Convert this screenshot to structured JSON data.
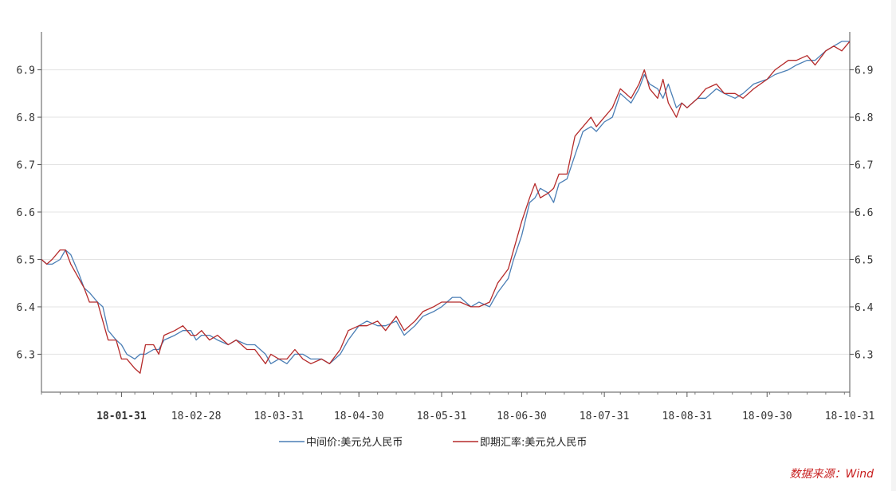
{
  "chart_data": {
    "type": "line",
    "x_tick_labels": [
      "18-01-31",
      "18-02-28",
      "18-03-31",
      "18-04-30",
      "18-05-31",
      "18-06-30",
      "18-07-31",
      "18-08-31",
      "18-09-30",
      "18-10-31"
    ],
    "x_range": [
      "2018-01-01",
      "2018-10-31"
    ],
    "y_tick_labels": [
      "6.3",
      "6.4",
      "6.5",
      "6.6",
      "6.7",
      "6.8",
      "6.9"
    ],
    "ylim": [
      6.22,
      6.98
    ],
    "grid": "horizontal",
    "legend_position": "bottom",
    "series": [
      {
        "name": "中间价:美元兑人民币",
        "color": "#4a7eb5",
        "points": [
          [
            "2018-01-01",
            6.5
          ],
          [
            "2018-01-03",
            6.49
          ],
          [
            "2018-01-05",
            6.49
          ],
          [
            "2018-01-08",
            6.5
          ],
          [
            "2018-01-10",
            6.52
          ],
          [
            "2018-01-12",
            6.51
          ],
          [
            "2018-01-15",
            6.47
          ],
          [
            "2018-01-17",
            6.44
          ],
          [
            "2018-01-19",
            6.43
          ],
          [
            "2018-01-22",
            6.41
          ],
          [
            "2018-01-24",
            6.4
          ],
          [
            "2018-01-26",
            6.35
          ],
          [
            "2018-01-29",
            6.33
          ],
          [
            "2018-01-31",
            6.32
          ],
          [
            "2018-02-02",
            6.3
          ],
          [
            "2018-02-05",
            6.29
          ],
          [
            "2018-02-07",
            6.3
          ],
          [
            "2018-02-09",
            6.3
          ],
          [
            "2018-02-12",
            6.31
          ],
          [
            "2018-02-14",
            6.31
          ],
          [
            "2018-02-16",
            6.33
          ],
          [
            "2018-02-20",
            6.34
          ],
          [
            "2018-02-23",
            6.35
          ],
          [
            "2018-02-26",
            6.35
          ],
          [
            "2018-02-28",
            6.33
          ],
          [
            "2018-03-02",
            6.34
          ],
          [
            "2018-03-05",
            6.34
          ],
          [
            "2018-03-08",
            6.33
          ],
          [
            "2018-03-12",
            6.32
          ],
          [
            "2018-03-15",
            6.33
          ],
          [
            "2018-03-19",
            6.32
          ],
          [
            "2018-03-22",
            6.32
          ],
          [
            "2018-03-26",
            6.3
          ],
          [
            "2018-03-28",
            6.28
          ],
          [
            "2018-03-31",
            6.29
          ],
          [
            "2018-04-03",
            6.28
          ],
          [
            "2018-04-06",
            6.3
          ],
          [
            "2018-04-09",
            6.3
          ],
          [
            "2018-04-12",
            6.29
          ],
          [
            "2018-04-16",
            6.29
          ],
          [
            "2018-04-19",
            6.28
          ],
          [
            "2018-04-23",
            6.3
          ],
          [
            "2018-04-26",
            6.33
          ],
          [
            "2018-04-30",
            6.36
          ],
          [
            "2018-05-03",
            6.37
          ],
          [
            "2018-05-07",
            6.36
          ],
          [
            "2018-05-10",
            6.36
          ],
          [
            "2018-05-14",
            6.37
          ],
          [
            "2018-05-17",
            6.34
          ],
          [
            "2018-05-21",
            6.36
          ],
          [
            "2018-05-24",
            6.38
          ],
          [
            "2018-05-28",
            6.39
          ],
          [
            "2018-05-31",
            6.4
          ],
          [
            "2018-06-04",
            6.42
          ],
          [
            "2018-06-07",
            6.42
          ],
          [
            "2018-06-11",
            6.4
          ],
          [
            "2018-06-14",
            6.41
          ],
          [
            "2018-06-18",
            6.4
          ],
          [
            "2018-06-21",
            6.43
          ],
          [
            "2018-06-25",
            6.46
          ],
          [
            "2018-06-27",
            6.5
          ],
          [
            "2018-06-30",
            6.55
          ],
          [
            "2018-07-03",
            6.62
          ],
          [
            "2018-07-05",
            6.63
          ],
          [
            "2018-07-07",
            6.65
          ],
          [
            "2018-07-10",
            6.64
          ],
          [
            "2018-07-12",
            6.62
          ],
          [
            "2018-07-14",
            6.66
          ],
          [
            "2018-07-17",
            6.67
          ],
          [
            "2018-07-20",
            6.72
          ],
          [
            "2018-07-23",
            6.77
          ],
          [
            "2018-07-26",
            6.78
          ],
          [
            "2018-07-28",
            6.77
          ],
          [
            "2018-07-31",
            6.79
          ],
          [
            "2018-08-03",
            6.8
          ],
          [
            "2018-08-06",
            6.85
          ],
          [
            "2018-08-08",
            6.84
          ],
          [
            "2018-08-10",
            6.83
          ],
          [
            "2018-08-13",
            6.86
          ],
          [
            "2018-08-15",
            6.89
          ],
          [
            "2018-08-17",
            6.87
          ],
          [
            "2018-08-20",
            6.86
          ],
          [
            "2018-08-22",
            6.84
          ],
          [
            "2018-08-24",
            6.87
          ],
          [
            "2018-08-27",
            6.82
          ],
          [
            "2018-08-29",
            6.83
          ],
          [
            "2018-08-31",
            6.82
          ],
          [
            "2018-09-04",
            6.84
          ],
          [
            "2018-09-07",
            6.84
          ],
          [
            "2018-09-11",
            6.86
          ],
          [
            "2018-09-14",
            6.85
          ],
          [
            "2018-09-18",
            6.84
          ],
          [
            "2018-09-21",
            6.85
          ],
          [
            "2018-09-25",
            6.87
          ],
          [
            "2018-09-30",
            6.88
          ],
          [
            "2018-10-03",
            6.89
          ],
          [
            "2018-10-08",
            6.9
          ],
          [
            "2018-10-11",
            6.91
          ],
          [
            "2018-10-15",
            6.92
          ],
          [
            "2018-10-18",
            6.92
          ],
          [
            "2018-10-22",
            6.94
          ],
          [
            "2018-10-25",
            6.95
          ],
          [
            "2018-10-28",
            6.96
          ],
          [
            "2018-10-31",
            6.96
          ]
        ]
      },
      {
        "name": "即期汇率:美元兑人民币",
        "color": "#b52a2a",
        "points": [
          [
            "2018-01-01",
            6.5
          ],
          [
            "2018-01-03",
            6.49
          ],
          [
            "2018-01-05",
            6.5
          ],
          [
            "2018-01-08",
            6.52
          ],
          [
            "2018-01-10",
            6.52
          ],
          [
            "2018-01-12",
            6.49
          ],
          [
            "2018-01-15",
            6.46
          ],
          [
            "2018-01-17",
            6.44
          ],
          [
            "2018-01-19",
            6.41
          ],
          [
            "2018-01-22",
            6.41
          ],
          [
            "2018-01-24",
            6.37
          ],
          [
            "2018-01-26",
            6.33
          ],
          [
            "2018-01-29",
            6.33
          ],
          [
            "2018-01-31",
            6.29
          ],
          [
            "2018-02-02",
            6.29
          ],
          [
            "2018-02-05",
            6.27
          ],
          [
            "2018-02-07",
            6.26
          ],
          [
            "2018-02-09",
            6.32
          ],
          [
            "2018-02-12",
            6.32
          ],
          [
            "2018-02-14",
            6.3
          ],
          [
            "2018-02-16",
            6.34
          ],
          [
            "2018-02-20",
            6.35
          ],
          [
            "2018-02-23",
            6.36
          ],
          [
            "2018-02-26",
            6.34
          ],
          [
            "2018-02-28",
            6.34
          ],
          [
            "2018-03-02",
            6.35
          ],
          [
            "2018-03-05",
            6.33
          ],
          [
            "2018-03-08",
            6.34
          ],
          [
            "2018-03-12",
            6.32
          ],
          [
            "2018-03-15",
            6.33
          ],
          [
            "2018-03-19",
            6.31
          ],
          [
            "2018-03-22",
            6.31
          ],
          [
            "2018-03-26",
            6.28
          ],
          [
            "2018-03-28",
            6.3
          ],
          [
            "2018-03-31",
            6.29
          ],
          [
            "2018-04-03",
            6.29
          ],
          [
            "2018-04-06",
            6.31
          ],
          [
            "2018-04-09",
            6.29
          ],
          [
            "2018-04-12",
            6.28
          ],
          [
            "2018-04-16",
            6.29
          ],
          [
            "2018-04-19",
            6.28
          ],
          [
            "2018-04-23",
            6.31
          ],
          [
            "2018-04-26",
            6.35
          ],
          [
            "2018-04-30",
            6.36
          ],
          [
            "2018-05-03",
            6.36
          ],
          [
            "2018-05-07",
            6.37
          ],
          [
            "2018-05-10",
            6.35
          ],
          [
            "2018-05-14",
            6.38
          ],
          [
            "2018-05-17",
            6.35
          ],
          [
            "2018-05-21",
            6.37
          ],
          [
            "2018-05-24",
            6.39
          ],
          [
            "2018-05-28",
            6.4
          ],
          [
            "2018-05-31",
            6.41
          ],
          [
            "2018-06-04",
            6.41
          ],
          [
            "2018-06-07",
            6.41
          ],
          [
            "2018-06-11",
            6.4
          ],
          [
            "2018-06-14",
            6.4
          ],
          [
            "2018-06-18",
            6.41
          ],
          [
            "2018-06-21",
            6.45
          ],
          [
            "2018-06-25",
            6.48
          ],
          [
            "2018-06-27",
            6.52
          ],
          [
            "2018-06-30",
            6.58
          ],
          [
            "2018-07-03",
            6.63
          ],
          [
            "2018-07-05",
            6.66
          ],
          [
            "2018-07-07",
            6.63
          ],
          [
            "2018-07-10",
            6.64
          ],
          [
            "2018-07-12",
            6.65
          ],
          [
            "2018-07-14",
            6.68
          ],
          [
            "2018-07-17",
            6.68
          ],
          [
            "2018-07-20",
            6.76
          ],
          [
            "2018-07-23",
            6.78
          ],
          [
            "2018-07-26",
            6.8
          ],
          [
            "2018-07-28",
            6.78
          ],
          [
            "2018-07-31",
            6.8
          ],
          [
            "2018-08-03",
            6.82
          ],
          [
            "2018-08-06",
            6.86
          ],
          [
            "2018-08-08",
            6.85
          ],
          [
            "2018-08-10",
            6.84
          ],
          [
            "2018-08-13",
            6.87
          ],
          [
            "2018-08-15",
            6.9
          ],
          [
            "2018-08-17",
            6.86
          ],
          [
            "2018-08-20",
            6.84
          ],
          [
            "2018-08-22",
            6.88
          ],
          [
            "2018-08-24",
            6.83
          ],
          [
            "2018-08-27",
            6.8
          ],
          [
            "2018-08-29",
            6.83
          ],
          [
            "2018-08-31",
            6.82
          ],
          [
            "2018-09-04",
            6.84
          ],
          [
            "2018-09-07",
            6.86
          ],
          [
            "2018-09-11",
            6.87
          ],
          [
            "2018-09-14",
            6.85
          ],
          [
            "2018-09-18",
            6.85
          ],
          [
            "2018-09-21",
            6.84
          ],
          [
            "2018-09-25",
            6.86
          ],
          [
            "2018-09-30",
            6.88
          ],
          [
            "2018-10-03",
            6.9
          ],
          [
            "2018-10-08",
            6.92
          ],
          [
            "2018-10-11",
            6.92
          ],
          [
            "2018-10-15",
            6.93
          ],
          [
            "2018-10-18",
            6.91
          ],
          [
            "2018-10-22",
            6.94
          ],
          [
            "2018-10-25",
            6.95
          ],
          [
            "2018-10-28",
            6.94
          ],
          [
            "2018-10-31",
            6.96
          ]
        ]
      }
    ]
  },
  "source_note": "数据来源：Wind"
}
